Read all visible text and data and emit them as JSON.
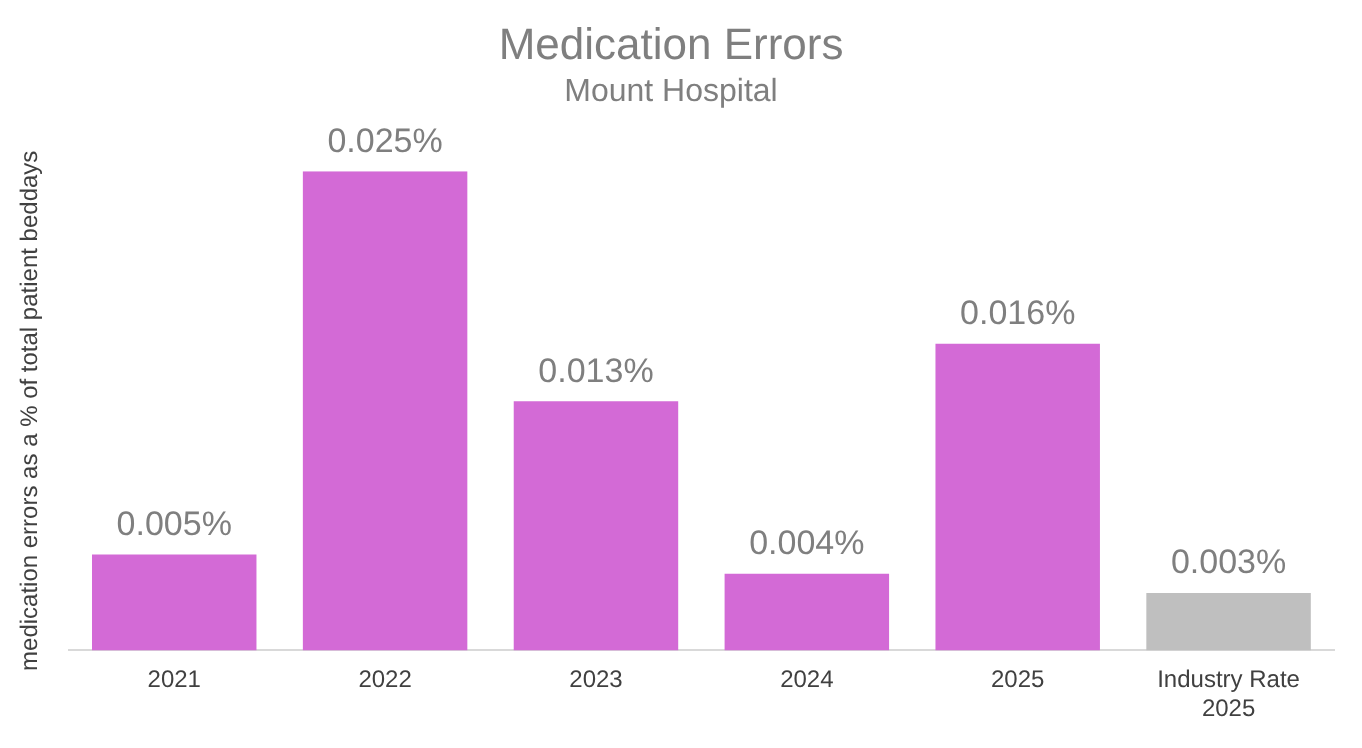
{
  "chart_data": {
    "type": "bar",
    "title": "Medication Errors",
    "subtitle": "Mount Hospital",
    "ylabel": "medication errors as a % of total patient beddays",
    "categories": [
      "2021",
      "2022",
      "2023",
      "2024",
      "2025",
      "Industry Rate 2025"
    ],
    "values": [
      0.005,
      0.025,
      0.013,
      0.004,
      0.016,
      0.003
    ],
    "colors": [
      "#d36ad6",
      "#d36ad6",
      "#d36ad6",
      "#d36ad6",
      "#d36ad6",
      "#bfbfbf"
    ],
    "value_labels": [
      "0.005%",
      "0.025%",
      "0.013%",
      "0.004%",
      "0.016%",
      "0.003%"
    ],
    "grid": false,
    "legend": false
  }
}
